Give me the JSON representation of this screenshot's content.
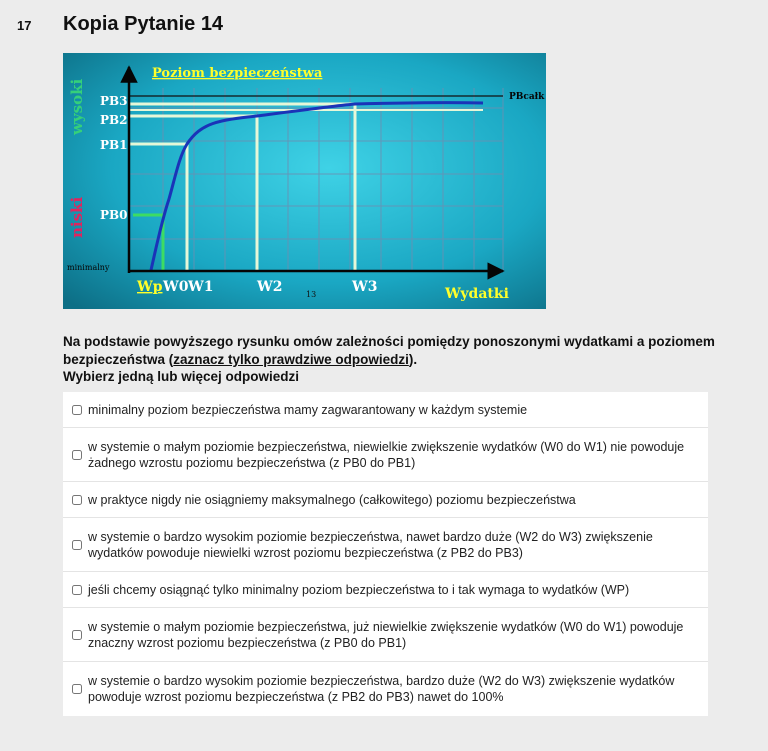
{
  "question": {
    "number": "17",
    "title": "Kopia Pytanie 14",
    "prompt_text": "Na podstawie powyższego rysunku omów zależności pomiędzy ponoszonymi wydatkami a poziomem bezpieczeństwa (",
    "prompt_hint": "zaznacz tylko prawdziwe odpowiedzi",
    "prompt_end": ").",
    "instruction": "Wybierz jedną lub więcej odpowiedzi"
  },
  "figure": {
    "title": "Poziom bezpieczeństwa",
    "y_high": "wysoki",
    "y_low": "niski",
    "min_label": "minimalny",
    "x_axis_label": "Wydatki",
    "page_number": "13",
    "pb_labels": [
      "PB3",
      "PB2",
      "PB1",
      "PB0"
    ],
    "pb_max": "PBcałk",
    "w_labels": [
      "Wp",
      "W0",
      "W1",
      "W2",
      "W3"
    ],
    "colors": {
      "background": "#1aa7c3",
      "curve": "#1a33b8",
      "guide_white": "#e6f7d8",
      "guide_green": "#3ddc63",
      "title_yellow": "#ffff2a",
      "high_green": "#35d07a",
      "low_red": "#e0245e"
    }
  },
  "answers": [
    {
      "text": "minimalny poziom bezpieczeństwa mamy zagwarantowany w każdym systemie",
      "checked": false
    },
    {
      "text": "w systemie o małym poziomie bezpieczeństwa, niewielkie zwiększenie wydatków (W0 do W1) nie powoduje żadnego wzrostu poziomu bezpieczeństwa (z PB0 do PB1)",
      "checked": false
    },
    {
      "text": "w praktyce nigdy nie osiągniemy maksymalnego (całkowitego) poziomu bezpieczeństwa",
      "checked": false
    },
    {
      "text": "w systemie o bardzo wysokim poziomie bezpieczeństwa, nawet bardzo duże (W2 do W3) zwiększenie wydatków powoduje niewielki wzrost poziomu bezpieczeństwa (z PB2 do PB3)",
      "checked": false
    },
    {
      "text": "jeśli chcemy osiągnąć tylko minimalny poziom bezpieczeństwa to i tak wymaga to wydatków (WP)",
      "checked": false
    },
    {
      "text": "w systemie o małym poziomie bezpieczeństwa, już niewielkie zwiększenie wydatków (W0 do W1) powoduje znaczny wzrost poziomu bezpieczeństwa (z PB0 do PB1)",
      "checked": false
    },
    {
      "text": "w systemie o bardzo wysokim poziomie bezpieczeństwa, bardzo duże (W2 do W3) zwiększenie wydatków powoduje wzrost poziomu bezpieczeństwa (z PB2 do PB3) nawet do 100%",
      "checked": false
    }
  ]
}
